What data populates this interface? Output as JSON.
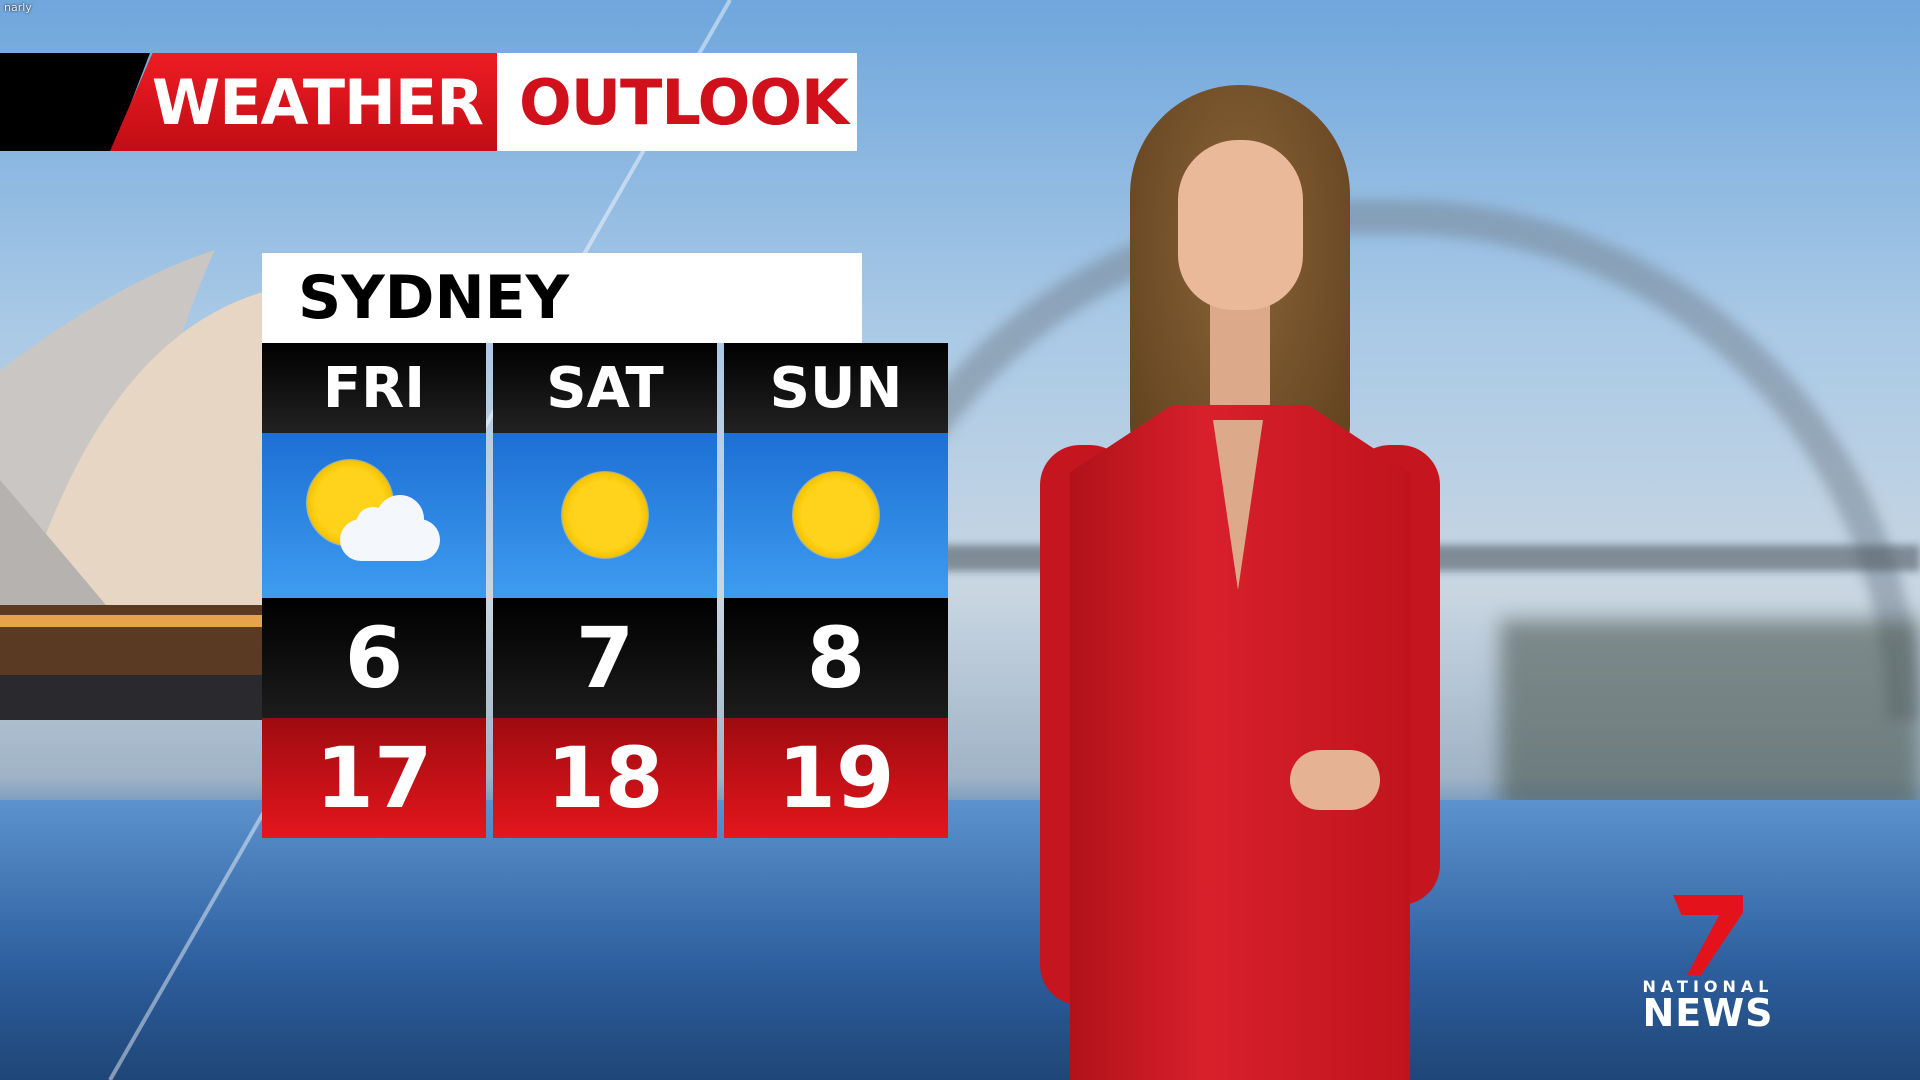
{
  "watermark": "narly",
  "banner": {
    "left": "WEATHER",
    "right": "OUTLOOK"
  },
  "city": "SYDNEY",
  "forecast": [
    {
      "day": "FRI",
      "icon": "partly-cloudy-icon",
      "min": "6",
      "max": "17"
    },
    {
      "day": "SAT",
      "icon": "sunny-icon",
      "min": "7",
      "max": "18"
    },
    {
      "day": "SUN",
      "icon": "sunny-icon",
      "min": "8",
      "max": "19"
    }
  ],
  "logo": {
    "line1": "NATIONAL",
    "line2": "NEWS"
  },
  "colors": {
    "brand_red": "#e4121b",
    "min_band": "#000000",
    "max_band": "#d0151c",
    "icon_band": "#2f86e4"
  }
}
